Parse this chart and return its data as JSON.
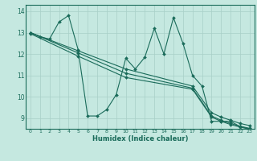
{
  "xlabel": "Humidex (Indice chaleur)",
  "xlim": [
    -0.5,
    23.5
  ],
  "ylim": [
    8.5,
    14.3
  ],
  "xticks": [
    0,
    1,
    2,
    3,
    4,
    5,
    6,
    7,
    8,
    9,
    10,
    11,
    12,
    13,
    14,
    15,
    16,
    17,
    18,
    19,
    20,
    21,
    22,
    23
  ],
  "yticks": [
    9,
    10,
    11,
    12,
    13,
    14
  ],
  "background_color": "#c5e8e0",
  "grid_color": "#a8cfc7",
  "line_color": "#1a6b5a",
  "series": [
    {
      "x": [
        0,
        1,
        2,
        3,
        4,
        5,
        6,
        7,
        8,
        9,
        10,
        11,
        12,
        13,
        14,
        15,
        16,
        17,
        18,
        19,
        20,
        21,
        22,
        23
      ],
      "y": [
        13.0,
        12.8,
        12.7,
        13.5,
        13.8,
        12.2,
        9.1,
        9.1,
        9.4,
        10.1,
        11.8,
        11.3,
        11.85,
        13.2,
        12.0,
        13.7,
        12.5,
        11.0,
        10.5,
        8.85,
        8.85,
        8.85,
        8.6,
        8.5
      ]
    },
    {
      "x": [
        0,
        5,
        10,
        17,
        19,
        20,
        21,
        22,
        23
      ],
      "y": [
        13.0,
        12.15,
        11.3,
        10.5,
        9.25,
        9.05,
        8.9,
        8.75,
        8.65
      ]
    },
    {
      "x": [
        0,
        5,
        10,
        17,
        19,
        20,
        21,
        22,
        23
      ],
      "y": [
        13.0,
        12.05,
        11.1,
        10.4,
        9.1,
        8.9,
        8.75,
        8.62,
        8.52
      ]
    },
    {
      "x": [
        0,
        5,
        10,
        17,
        19,
        20,
        21,
        22,
        23
      ],
      "y": [
        12.95,
        11.9,
        10.9,
        10.35,
        9.05,
        8.85,
        8.7,
        8.58,
        8.48
      ]
    }
  ]
}
